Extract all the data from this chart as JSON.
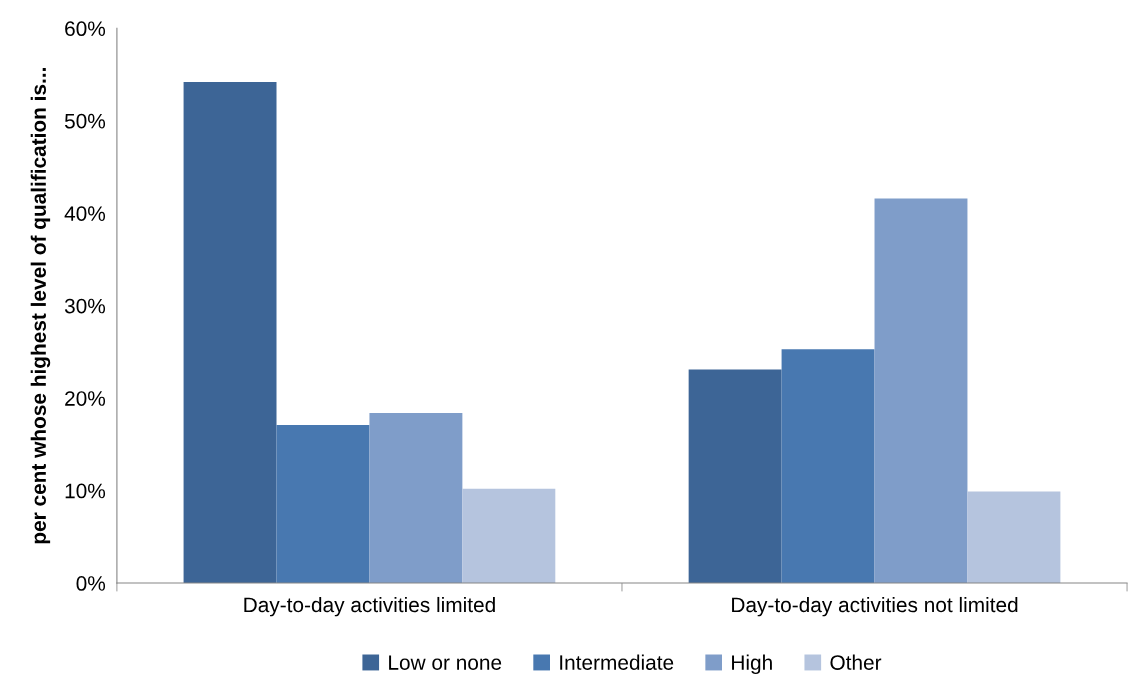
{
  "chart_data": {
    "type": "bar",
    "ylabel": "per cent whose highest level of qualification is...",
    "categories": [
      "Day-to-day activities limited",
      "Day-to-day activities not limited"
    ],
    "series": [
      {
        "name": "Low or none",
        "color": "#3d6596",
        "values": [
          54.2,
          23.1
        ]
      },
      {
        "name": "Intermediate",
        "color": "#4878b0",
        "values": [
          17.1,
          25.3
        ]
      },
      {
        "name": "High",
        "color": "#7f9dc9",
        "values": [
          18.4,
          41.6
        ]
      },
      {
        "name": "Other",
        "color": "#b5c4de",
        "values": [
          10.2,
          9.9
        ]
      }
    ],
    "ylim": [
      0,
      60
    ],
    "yticks": [
      {
        "value": 0,
        "label": "0%"
      },
      {
        "value": 10,
        "label": "10%"
      },
      {
        "value": 20,
        "label": "20%"
      },
      {
        "value": 30,
        "label": "30%"
      },
      {
        "value": 40,
        "label": "40%"
      },
      {
        "value": 50,
        "label": "50%"
      },
      {
        "value": 60,
        "label": "60%"
      }
    ],
    "grid": false,
    "legend": "bottom"
  }
}
